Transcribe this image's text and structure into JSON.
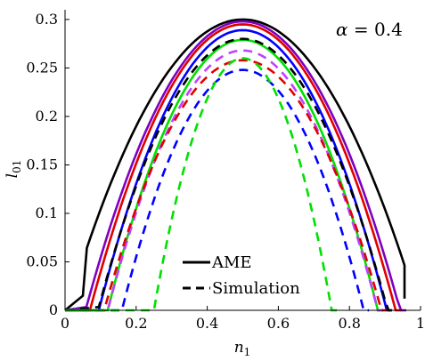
{
  "chart_data": {
    "type": "line",
    "xlabel": "n",
    "xlabel_sub": "1",
    "ylabel": "l",
    "ylabel_sub": "01",
    "xlim": [
      0,
      1
    ],
    "ylim": [
      0,
      0.31
    ],
    "xticks": [
      0,
      0.2,
      0.4,
      0.6,
      0.8,
      1
    ],
    "xtick_labels": [
      "0",
      "0.2",
      "0.4",
      "0.6",
      "0.8",
      "1"
    ],
    "yticks": [
      0,
      0.05,
      0.1,
      0.15,
      0.2,
      0.25,
      0.3
    ],
    "ytick_labels": [
      "0",
      "0.05",
      "0.1",
      "0.15",
      "0.2",
      "0.25",
      "0.3"
    ],
    "annotation": {
      "var": "α",
      "rest": " = 0.4"
    },
    "legend": {
      "placement": "bottom-center",
      "entries": [
        {
          "label": "AME",
          "style": "solid"
        },
        {
          "label": "Simulation",
          "style": "dashed"
        }
      ]
    },
    "series": [
      {
        "style": "solid",
        "color": "#000000",
        "peak": 0.3,
        "start": 0.0,
        "kink": [
          0.05,
          0.015
        ],
        "end": 0.955,
        "end_val": 0.012
      },
      {
        "style": "solid",
        "color": "#7f00bf",
        "peak": 0.298,
        "start": 0.06,
        "end": 0.945
      },
      {
        "style": "solid",
        "color": "#e00000",
        "peak": 0.295,
        "start": 0.07,
        "end": 0.93
      },
      {
        "style": "solid",
        "color": "#0000ff",
        "peak": 0.289,
        "start": 0.095,
        "end": 0.905
      },
      {
        "style": "solid",
        "color": "#00e000",
        "peak": 0.279,
        "start": 0.12,
        "end": 0.88
      },
      {
        "style": "dashed",
        "color": "#000000",
        "peak": 0.28,
        "start": 0.095,
        "end": 0.91
      },
      {
        "style": "dashed",
        "color": "#bf40ff",
        "peak": 0.268,
        "start": 0.12,
        "end": 0.88
      },
      {
        "style": "dashed",
        "color": "#e00000",
        "peak": 0.258,
        "start": 0.11,
        "end": 0.89
      },
      {
        "style": "dashed",
        "color": "#0000ff",
        "peak": 0.248,
        "start": 0.16,
        "end": 0.84
      },
      {
        "style": "dashed",
        "color": "#00e000",
        "peak": 0.26,
        "start": 0.25,
        "end": 0.75
      }
    ],
    "grid": false,
    "colors": {
      "axis": "#000000",
      "background": "#ffffff"
    }
  }
}
